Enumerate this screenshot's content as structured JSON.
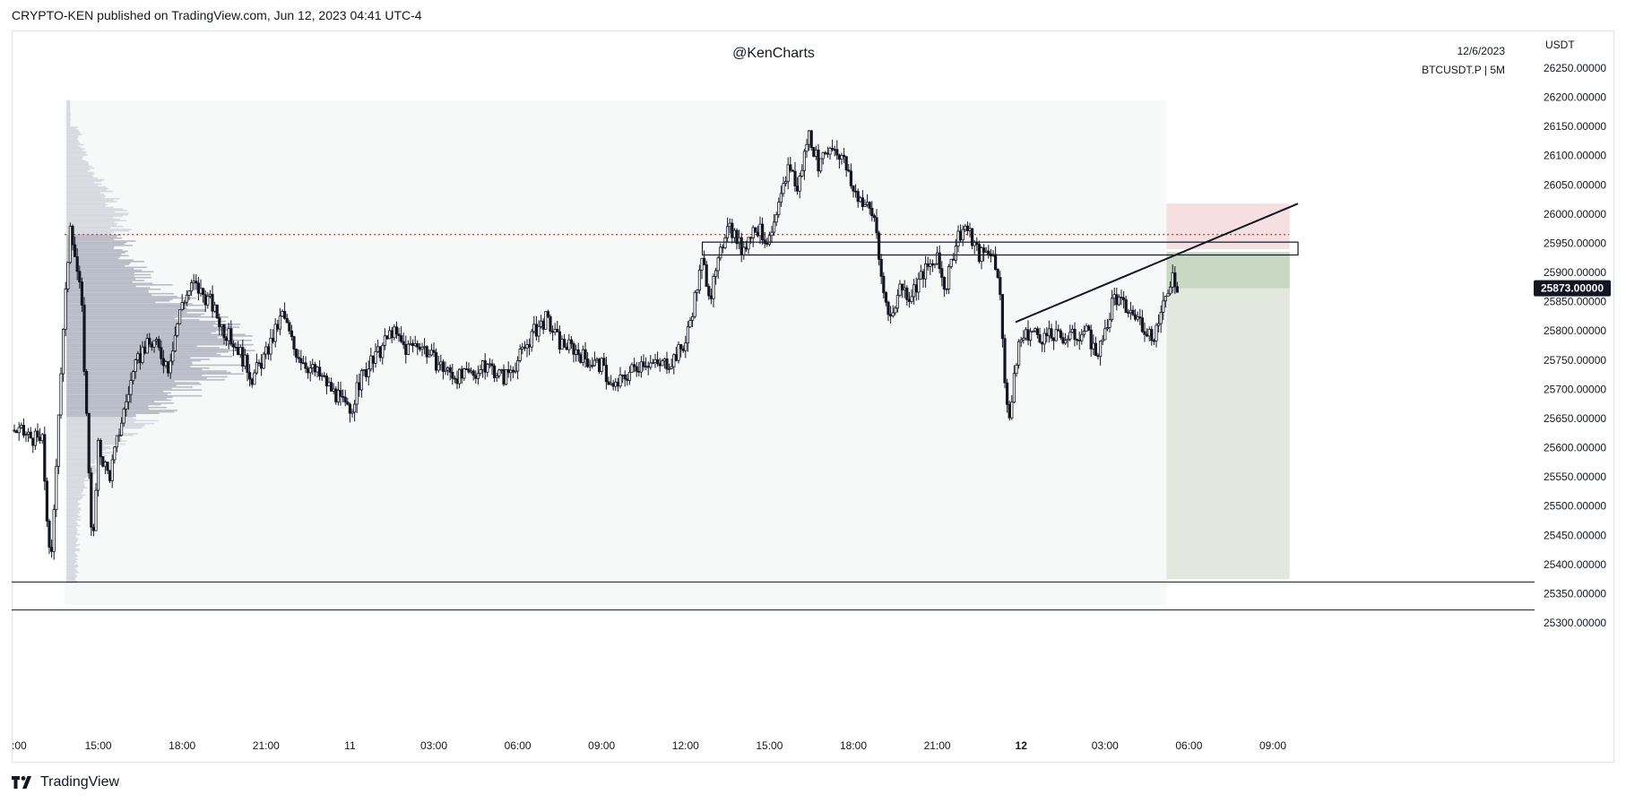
{
  "header": {
    "published_text": "CRYPTO-KEN published on TradingView.com, Jun 12, 2023 04:41 UTC-4"
  },
  "watermark": "@KenCharts",
  "symbol": {
    "date": "12/6/2023",
    "info": "BTCUSDT.P | 5M"
  },
  "footer": {
    "brand": "TradingView",
    "icon": "tradingview-logo-icon"
  },
  "chart_data": {
    "type": "candlestick",
    "title": "",
    "currency_label": "USDT",
    "current_price_label": "25873.00000",
    "current_price": 25873,
    "ylim": [
      25270,
      26290
    ],
    "y_ticks": [
      {
        "value": 26250,
        "label": "26250.00000"
      },
      {
        "value": 26200,
        "label": "26200.00000"
      },
      {
        "value": 26150,
        "label": "26150.00000"
      },
      {
        "value": 26100,
        "label": "26100.00000"
      },
      {
        "value": 26050,
        "label": "26050.00000"
      },
      {
        "value": 26000,
        "label": "26000.00000"
      },
      {
        "value": 25950,
        "label": "25950.00000"
      },
      {
        "value": 25900,
        "label": "25900.00000"
      },
      {
        "value": 25850,
        "label": "25850.00000"
      },
      {
        "value": 25800,
        "label": "25800.00000"
      },
      {
        "value": 25750,
        "label": "25750.00000"
      },
      {
        "value": 25700,
        "label": "25700.00000"
      },
      {
        "value": 25650,
        "label": "25650.00000"
      },
      {
        "value": 25600,
        "label": "25600.00000"
      },
      {
        "value": 25550,
        "label": "25550.00000"
      },
      {
        "value": 25500,
        "label": "25500.00000"
      },
      {
        "value": 25450,
        "label": "25450.00000"
      },
      {
        "value": 25400,
        "label": "25400.00000"
      },
      {
        "value": 25350,
        "label": "25350.00000"
      },
      {
        "value": 25300,
        "label": "25300.00000"
      }
    ],
    "x_ticks": [
      {
        "hour": 12,
        "label": ":00",
        "bold": false
      },
      {
        "hour": 15,
        "label": "15:00",
        "bold": false
      },
      {
        "hour": 18,
        "label": "18:00",
        "bold": false
      },
      {
        "hour": 21,
        "label": "21:00",
        "bold": false
      },
      {
        "hour": 24,
        "label": "11",
        "bold": false
      },
      {
        "hour": 27,
        "label": "03:00",
        "bold": false
      },
      {
        "hour": 30,
        "label": "06:00",
        "bold": false
      },
      {
        "hour": 33,
        "label": "09:00",
        "bold": false
      },
      {
        "hour": 36,
        "label": "12:00",
        "bold": false
      },
      {
        "hour": 39,
        "label": "15:00",
        "bold": false
      },
      {
        "hour": 42,
        "label": "18:00",
        "bold": false
      },
      {
        "hour": 45,
        "label": "21:00",
        "bold": false
      },
      {
        "hour": 48,
        "label": "12",
        "bold": true
      },
      {
        "hour": 51,
        "label": "03:00",
        "bold": false
      },
      {
        "hour": 54,
        "label": "06:00",
        "bold": false
      },
      {
        "hour": 57,
        "label": "09:00",
        "bold": false
      }
    ],
    "xlim_hours": [
      12,
      58.5
    ],
    "price_path": [
      [
        12.0,
        25630
      ],
      [
        13.0,
        25610
      ],
      [
        13.3,
        25380
      ],
      [
        13.6,
        25680
      ],
      [
        14.0,
        25990
      ],
      [
        14.4,
        25850
      ],
      [
        14.8,
        25420
      ],
      [
        15.0,
        25600
      ],
      [
        15.4,
        25550
      ],
      [
        15.8,
        25640
      ],
      [
        16.2,
        25720
      ],
      [
        16.6,
        25770
      ],
      [
        17.0,
        25780
      ],
      [
        17.5,
        25740
      ],
      [
        18.0,
        25850
      ],
      [
        18.4,
        25880
      ],
      [
        19.0,
        25850
      ],
      [
        19.5,
        25800
      ],
      [
        20.0,
        25770
      ],
      [
        20.5,
        25720
      ],
      [
        21.0,
        25760
      ],
      [
        21.6,
        25830
      ],
      [
        22.0,
        25770
      ],
      [
        22.5,
        25740
      ],
      [
        23.0,
        25720
      ],
      [
        23.5,
        25690
      ],
      [
        24.0,
        25660
      ],
      [
        24.4,
        25720
      ],
      [
        25.0,
        25760
      ],
      [
        25.5,
        25800
      ],
      [
        26.0,
        25770
      ],
      [
        26.5,
        25780
      ],
      [
        27.0,
        25750
      ],
      [
        27.5,
        25730
      ],
      [
        28.0,
        25720
      ],
      [
        28.5,
        25730
      ],
      [
        29.0,
        25740
      ],
      [
        29.5,
        25720
      ],
      [
        30.0,
        25750
      ],
      [
        30.6,
        25800
      ],
      [
        31.0,
        25820
      ],
      [
        31.5,
        25780
      ],
      [
        32.0,
        25770
      ],
      [
        32.5,
        25750
      ],
      [
        33.0,
        25740
      ],
      [
        33.4,
        25700
      ],
      [
        34.0,
        25730
      ],
      [
        34.5,
        25750
      ],
      [
        35.0,
        25740
      ],
      [
        35.5,
        25750
      ],
      [
        36.0,
        25780
      ],
      [
        36.3,
        25850
      ],
      [
        36.6,
        25920
      ],
      [
        36.9,
        25860
      ],
      [
        37.2,
        25920
      ],
      [
        37.5,
        25990
      ],
      [
        38.0,
        25940
      ],
      [
        38.5,
        25980
      ],
      [
        39.0,
        25950
      ],
      [
        39.3,
        26000
      ],
      [
        39.7,
        26090
      ],
      [
        40.0,
        26040
      ],
      [
        40.4,
        26140
      ],
      [
        40.8,
        26080
      ],
      [
        41.2,
        26120
      ],
      [
        41.6,
        26100
      ],
      [
        42.0,
        26040
      ],
      [
        42.4,
        26020
      ],
      [
        42.8,
        25990
      ],
      [
        43.0,
        25880
      ],
      [
        43.3,
        25820
      ],
      [
        43.7,
        25880
      ],
      [
        44.0,
        25860
      ],
      [
        44.5,
        25900
      ],
      [
        45.0,
        25920
      ],
      [
        45.3,
        25870
      ],
      [
        45.7,
        25960
      ],
      [
        46.0,
        25980
      ],
      [
        46.5,
        25930
      ],
      [
        46.9,
        25940
      ],
      [
        47.2,
        25900
      ],
      [
        47.4,
        25720
      ],
      [
        47.6,
        25650
      ],
      [
        47.9,
        25780
      ],
      [
        48.3,
        25800
      ],
      [
        48.8,
        25790
      ],
      [
        49.3,
        25790
      ],
      [
        49.8,
        25790
      ],
      [
        50.3,
        25800
      ],
      [
        50.7,
        25760
      ],
      [
        51.0,
        25790
      ],
      [
        51.3,
        25860
      ],
      [
        51.7,
        25840
      ],
      [
        52.2,
        25820
      ],
      [
        52.7,
        25790
      ],
      [
        53.1,
        25840
      ],
      [
        53.4,
        25900
      ],
      [
        53.6,
        25873
      ]
    ],
    "annotations": {
      "dotted_level": 25965,
      "box_zone": [
        25930,
        25952
      ],
      "box_hours": [
        36.6,
        57.9
      ],
      "trendline": [
        [
          47.8,
          25815
        ],
        [
          57.9,
          26018
        ]
      ],
      "stop_zone": [
        25940,
        26018
      ],
      "entry": 25940,
      "profit_zone_top": 25935,
      "take_profit": 25375,
      "filled_profit_bottom": 25873,
      "position_hours": [
        53.2,
        57.6
      ],
      "support_levels": [
        25370,
        25322
      ],
      "range_hours": [
        13.8,
        53.2
      ],
      "range_price": [
        25330,
        26195
      ]
    }
  }
}
